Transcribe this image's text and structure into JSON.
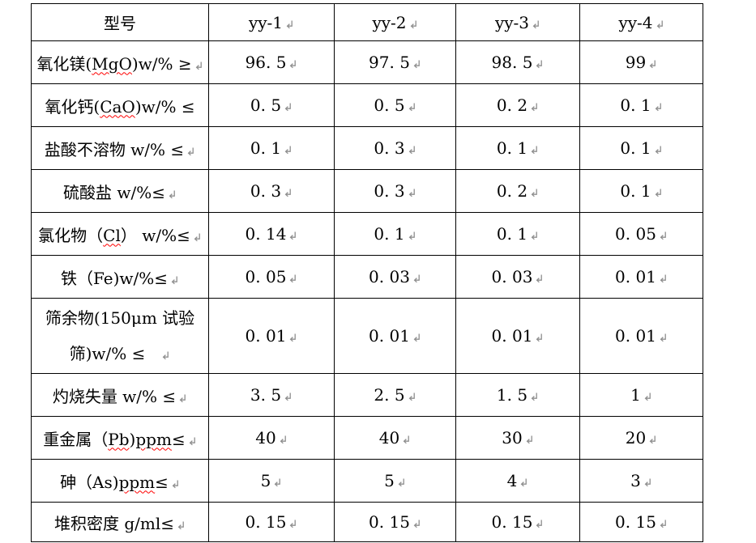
{
  "colors": {
    "background": "#ffffff",
    "text": "#000000",
    "table_border": "#000000",
    "spellcheck_underline": "#ff0000",
    "paragraph_mark": "#8e8e8e"
  },
  "icons": {
    "paragraph_mark": {
      "name": "pilcrow-return-icon",
      "glyph": "↵",
      "color": "#8e8e8e"
    }
  },
  "table": {
    "columns": [
      {
        "id": "param",
        "label": "型号",
        "pmark": false
      },
      {
        "id": "yy-1",
        "label": "yy-1",
        "pmark": true
      },
      {
        "id": "yy-2",
        "label": "yy-2",
        "pmark": true
      },
      {
        "id": "yy-3",
        "label": "yy-3",
        "pmark": true
      },
      {
        "id": "yy-4",
        "label": "yy-4",
        "pmark": true
      }
    ],
    "rows": [
      {
        "name": "mgo",
        "label_lines": [
          [
            {
              "t": "氧化镁("
            },
            {
              "t": "MgO",
              "misspelled": true
            },
            {
              "t": ")w/% ≥"
            }
          ]
        ],
        "label_pmark": true,
        "values": [
          "96. 5",
          "97. 5",
          "98. 5",
          "99"
        ]
      },
      {
        "name": "cao",
        "label_lines": [
          [
            {
              "t": "氧化钙("
            },
            {
              "t": "CaO",
              "misspelled": true
            },
            {
              "t": ")w/% ≤"
            }
          ]
        ],
        "label_pmark": false,
        "values": [
          "0. 5",
          "0. 5",
          "0. 2",
          "0. 1"
        ]
      },
      {
        "name": "hcl-insoluble",
        "label_lines": [
          [
            {
              "t": "盐酸不溶物 w/% ≤"
            }
          ]
        ],
        "label_pmark": true,
        "values": [
          "0. 1",
          "0. 3",
          "0. 1",
          "0. 1"
        ]
      },
      {
        "name": "sulfate",
        "label_lines": [
          [
            {
              "t": "硫酸盐 w/%≤"
            }
          ]
        ],
        "label_pmark": true,
        "values": [
          "0. 3",
          "0. 3",
          "0. 2",
          "0. 1"
        ]
      },
      {
        "name": "chloride",
        "label_lines": [
          [
            {
              "t": "氯化物（"
            },
            {
              "t": "Cl",
              "misspelled": true
            },
            {
              "t": "） w/%≤"
            }
          ]
        ],
        "label_pmark": true,
        "values": [
          "0. 14",
          "0. 1",
          "0. 1",
          "0. 05"
        ]
      },
      {
        "name": "iron",
        "label_lines": [
          [
            {
              "t": "铁（Fe)w/%≤"
            }
          ]
        ],
        "label_pmark": true,
        "values": [
          "0. 05",
          "0. 03",
          "0. 03",
          "0. 01"
        ]
      },
      {
        "name": "sieve-residue",
        "label_lines": [
          [
            {
              "t": "筛余物(150μm 试验"
            }
          ],
          [
            {
              "t": "筛)w/% ≤"
            }
          ]
        ],
        "label_pmark": true,
        "label_pmark_gap": true,
        "tall": true,
        "values": [
          "0. 01",
          "0. 01",
          "0. 01",
          "0. 01"
        ]
      },
      {
        "name": "loss-on-ignition",
        "label_lines": [
          [
            {
              "t": "灼烧失量 w/% ≤"
            }
          ]
        ],
        "label_pmark": true,
        "values": [
          "3. 5",
          "2. 5",
          "1. 5",
          "1"
        ]
      },
      {
        "name": "heavy-metals",
        "label_lines": [
          [
            {
              "t": "重金属（"
            },
            {
              "t": "Pb",
              "misspelled": true
            },
            {
              "t": ")"
            },
            {
              "t": "ppm",
              "misspelled": true
            },
            {
              "t": "≤"
            }
          ]
        ],
        "label_pmark": true,
        "values": [
          "40",
          "40",
          "30",
          "20"
        ]
      },
      {
        "name": "arsenic",
        "label_lines": [
          [
            {
              "t": "砷（As)"
            },
            {
              "t": "ppm",
              "misspelled": true
            },
            {
              "t": "≤"
            }
          ]
        ],
        "label_pmark": true,
        "values": [
          "5",
          "5",
          "4",
          "3"
        ]
      },
      {
        "name": "bulk-density",
        "label_lines": [
          [
            {
              "t": "堆积密度 g/ml≤"
            }
          ]
        ],
        "label_pmark": true,
        "values": [
          "0. 15",
          "0. 15",
          "0. 15",
          "0. 15"
        ]
      }
    ]
  }
}
